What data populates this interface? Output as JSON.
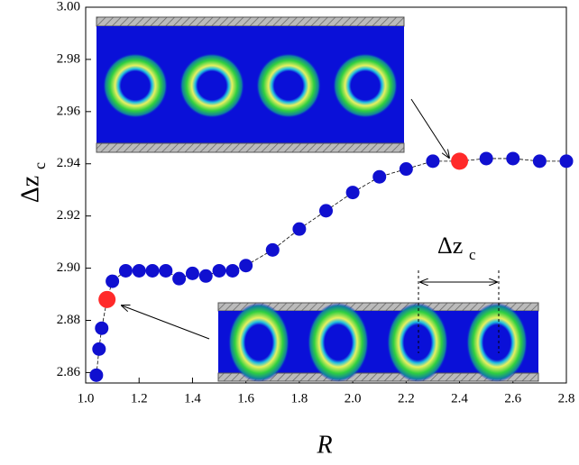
{
  "chart_data": {
    "type": "scatter",
    "x_label": "R",
    "y_label": {
      "main": "Δz",
      "sub": "c"
    },
    "inset_label": {
      "main": "Δz",
      "sub": "c"
    },
    "xlim": [
      1.0,
      2.8
    ],
    "ylim": [
      2.856,
      3.0
    ],
    "xticks": [
      {
        "value": 1.0,
        "label": "1.0"
      },
      {
        "value": 1.2,
        "label": "1.2"
      },
      {
        "value": 1.4,
        "label": "1.4"
      },
      {
        "value": 1.6,
        "label": "1.6"
      },
      {
        "value": 1.8,
        "label": "1.8"
      },
      {
        "value": 2.0,
        "label": "2.0"
      },
      {
        "value": 2.2,
        "label": "2.2"
      },
      {
        "value": 2.4,
        "label": "2.4"
      },
      {
        "value": 2.6,
        "label": "2.6"
      },
      {
        "value": 2.8,
        "label": "2.8"
      }
    ],
    "yticks": [
      {
        "value": 2.86,
        "label": "2.86"
      },
      {
        "value": 2.88,
        "label": "2.88"
      },
      {
        "value": 2.9,
        "label": "2.90"
      },
      {
        "value": 2.92,
        "label": "2.92"
      },
      {
        "value": 2.94,
        "label": "2.94"
      },
      {
        "value": 2.96,
        "label": "2.96"
      },
      {
        "value": 2.98,
        "label": "2.98"
      },
      {
        "value": 3.0,
        "label": "3.00"
      }
    ],
    "series": [
      {
        "color": "#1010d0",
        "x": [
          1.04,
          1.05,
          1.06,
          1.08,
          1.1,
          1.15,
          1.2,
          1.25,
          1.3,
          1.35,
          1.4,
          1.45,
          1.5,
          1.55,
          1.6,
          1.7,
          1.8,
          1.9,
          2.0,
          2.1,
          2.2,
          2.3,
          2.4,
          2.5,
          2.6,
          2.7,
          2.8
        ],
        "values": [
          2.859,
          2.869,
          2.877,
          2.888,
          2.895,
          2.899,
          2.899,
          2.899,
          2.899,
          2.896,
          2.898,
          2.897,
          2.899,
          2.899,
          2.901,
          2.907,
          2.915,
          2.922,
          2.929,
          2.935,
          2.938,
          2.941,
          2.941,
          2.942,
          2.942,
          2.941,
          2.941
        ],
        "marker_colors": [
          "#1010d0",
          "#1010d0",
          "#1010d0",
          "#ff2a2a",
          "#1010d0",
          "#1010d0",
          "#1010d0",
          "#1010d0",
          "#1010d0",
          "#1010d0",
          "#1010d0",
          "#1010d0",
          "#1010d0",
          "#1010d0",
          "#1010d0",
          "#1010d0",
          "#1010d0",
          "#1010d0",
          "#1010d0",
          "#1010d0",
          "#1010d0",
          "#1010d0",
          "#ff2a2a",
          "#1010d0",
          "#1010d0",
          "#1010d0",
          "#1010d0"
        ]
      }
    ]
  }
}
